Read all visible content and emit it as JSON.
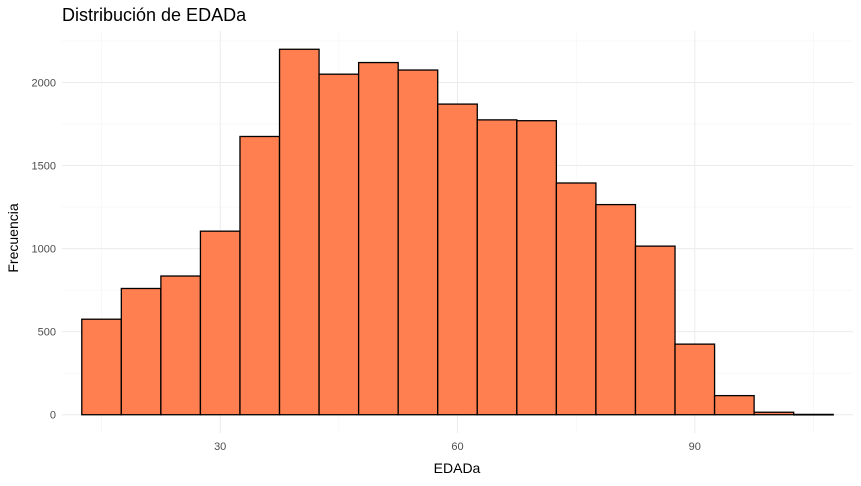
{
  "chart_data": {
    "type": "bar",
    "title": "Distribución de EDADa",
    "xlabel": "EDADa",
    "ylabel": "Frecuencia",
    "bin_width": 5,
    "bins": [
      {
        "start": 12.5,
        "end": 17.5,
        "count": 575
      },
      {
        "start": 17.5,
        "end": 22.5,
        "count": 760
      },
      {
        "start": 22.5,
        "end": 27.5,
        "count": 835
      },
      {
        "start": 27.5,
        "end": 32.5,
        "count": 1105
      },
      {
        "start": 32.5,
        "end": 37.5,
        "count": 1675
      },
      {
        "start": 37.5,
        "end": 42.5,
        "count": 2200
      },
      {
        "start": 42.5,
        "end": 47.5,
        "count": 2050
      },
      {
        "start": 47.5,
        "end": 52.5,
        "count": 2120
      },
      {
        "start": 52.5,
        "end": 57.5,
        "count": 2075
      },
      {
        "start": 57.5,
        "end": 62.5,
        "count": 1870
      },
      {
        "start": 62.5,
        "end": 67.5,
        "count": 1775
      },
      {
        "start": 67.5,
        "end": 72.5,
        "count": 1770
      },
      {
        "start": 72.5,
        "end": 77.5,
        "count": 1395
      },
      {
        "start": 77.5,
        "end": 82.5,
        "count": 1265
      },
      {
        "start": 82.5,
        "end": 87.5,
        "count": 1015
      },
      {
        "start": 87.5,
        "end": 92.5,
        "count": 425
      },
      {
        "start": 92.5,
        "end": 97.5,
        "count": 115
      },
      {
        "start": 97.5,
        "end": 102.5,
        "count": 15
      },
      {
        "start": 102.5,
        "end": 107.5,
        "count": 2
      }
    ],
    "x_ticks": [
      30,
      60,
      90
    ],
    "y_ticks": [
      0,
      500,
      1000,
      1500,
      2000
    ],
    "xlim": [
      10.0,
      110.0
    ],
    "ylim": [
      -110,
      2310
    ],
    "grid": true,
    "bar_fill": "#FF7F50",
    "bar_outline": "#000000"
  }
}
